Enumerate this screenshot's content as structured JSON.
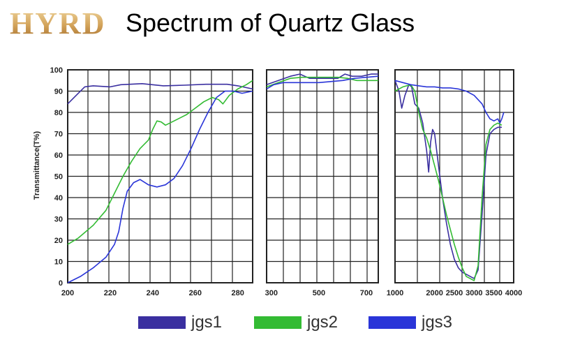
{
  "header": {
    "logo_text": "HYRD",
    "title": "Spectrum of Quartz Glass"
  },
  "chart_data": {
    "type": "line",
    "title": "Spectrum of Quartz Glass",
    "ylabel": "Transmittance(T%)",
    "xlabel": "",
    "ylim": [
      0,
      100
    ],
    "yticks": [
      0,
      10,
      20,
      30,
      40,
      50,
      60,
      70,
      80,
      90,
      100
    ],
    "grid": true,
    "legend_position": "bottom",
    "panels": [
      {
        "xlim": [
          200,
          287
        ],
        "xticks": [
          200,
          220,
          240,
          260,
          280
        ],
        "series": [
          {
            "name": "jgs1",
            "color": "#3a2fa0",
            "points": [
              [
                200,
                84
              ],
              [
                204,
                88
              ],
              [
                208,
                92
              ],
              [
                212,
                92.5
              ],
              [
                220,
                92
              ],
              [
                225,
                93
              ],
              [
                235,
                93.5
              ],
              [
                245,
                92.5
              ],
              [
                255,
                92.8
              ],
              [
                265,
                93.2
              ],
              [
                275,
                93.2
              ],
              [
                280,
                92.5
              ],
              [
                287,
                91
              ]
            ]
          },
          {
            "name": "jgs2",
            "color": "#33bb33",
            "points": [
              [
                200,
                18
              ],
              [
                205,
                21
              ],
              [
                212,
                27
              ],
              [
                218,
                34
              ],
              [
                222,
                42
              ],
              [
                226,
                50
              ],
              [
                230,
                57
              ],
              [
                234,
                63
              ],
              [
                238,
                67
              ],
              [
                240,
                72
              ],
              [
                242,
                76
              ],
              [
                244,
                75.5
              ],
              [
                246,
                74
              ],
              [
                248,
                75
              ],
              [
                252,
                77
              ],
              [
                256,
                79
              ],
              [
                260,
                82
              ],
              [
                264,
                85
              ],
              [
                268,
                87
              ],
              [
                271,
                86
              ],
              [
                273,
                84
              ],
              [
                276,
                88
              ],
              [
                280,
                91
              ],
              [
                284,
                93
              ],
              [
                287,
                95
              ]
            ]
          },
          {
            "name": "jgs3",
            "color": "#2a35d8",
            "points": [
              [
                200,
                0
              ],
              [
                206,
                3
              ],
              [
                212,
                7
              ],
              [
                218,
                12
              ],
              [
                222,
                18
              ],
              [
                224,
                24
              ],
              [
                226,
                35
              ],
              [
                228,
                43
              ],
              [
                231,
                47
              ],
              [
                234,
                48.5
              ],
              [
                238,
                46
              ],
              [
                242,
                45
              ],
              [
                246,
                46
              ],
              [
                250,
                49
              ],
              [
                254,
                55
              ],
              [
                258,
                63
              ],
              [
                262,
                72
              ],
              [
                266,
                80
              ],
              [
                270,
                87
              ],
              [
                274,
                90
              ],
              [
                278,
                90
              ],
              [
                282,
                89
              ],
              [
                287,
                90
              ]
            ]
          }
        ]
      },
      {
        "xlim": [
          280,
          750
        ],
        "xticks": [
          300,
          500,
          700
        ],
        "series": [
          {
            "name": "jgs1",
            "color": "#3a2fa0",
            "points": [
              [
                280,
                93
              ],
              [
                330,
                95
              ],
              [
                380,
                97
              ],
              [
                420,
                98
              ],
              [
                460,
                96
              ],
              [
                500,
                96
              ],
              [
                540,
                96
              ],
              [
                580,
                96
              ],
              [
                610,
                98
              ],
              [
                640,
                97
              ],
              [
                680,
                97
              ],
              [
                720,
                98
              ],
              [
                750,
                98
              ]
            ]
          },
          {
            "name": "jgs2",
            "color": "#33bb33",
            "points": [
              [
                280,
                92
              ],
              [
                330,
                94
              ],
              [
                380,
                96
              ],
              [
                430,
                96.5
              ],
              [
                480,
                96.5
              ],
              [
                530,
                96.5
              ],
              [
                580,
                96.5
              ],
              [
                620,
                96
              ],
              [
                660,
                95
              ],
              [
                700,
                95
              ],
              [
                750,
                95
              ]
            ]
          },
          {
            "name": "jgs3",
            "color": "#2a35d8",
            "points": [
              [
                280,
                91
              ],
              [
                310,
                93
              ],
              [
                350,
                94
              ],
              [
                400,
                94
              ],
              [
                450,
                94
              ],
              [
                500,
                94
              ],
              [
                550,
                94.5
              ],
              [
                600,
                95
              ],
              [
                650,
                96
              ],
              [
                700,
                96.5
              ],
              [
                750,
                97
              ]
            ]
          }
        ]
      },
      {
        "xlim": [
          1000,
          4000
        ],
        "xticks": [
          1000,
          2000,
          2500,
          3000,
          3500,
          4000
        ],
        "series": [
          {
            "name": "jgs1",
            "color": "#3a2fa0",
            "points": [
              [
                1000,
                95
              ],
              [
                1100,
                90
              ],
              [
                1170,
                82
              ],
              [
                1250,
                88
              ],
              [
                1350,
                93
              ],
              [
                1420,
                92
              ],
              [
                1500,
                84
              ],
              [
                1600,
                82
              ],
              [
                1700,
                75
              ],
              [
                1800,
                62
              ],
              [
                1850,
                52
              ],
              [
                1900,
                66
              ],
              [
                1950,
                72
              ],
              [
                2000,
                70
              ],
              [
                2100,
                55
              ],
              [
                2200,
                40
              ],
              [
                2300,
                28
              ],
              [
                2400,
                18
              ],
              [
                2500,
                11
              ],
              [
                2600,
                7
              ],
              [
                2700,
                5
              ],
              [
                2800,
                4
              ],
              [
                2900,
                3
              ],
              [
                3000,
                2
              ],
              [
                3100,
                6
              ],
              [
                3200,
                32
              ],
              [
                3300,
                60
              ],
              [
                3400,
                70
              ],
              [
                3500,
                72
              ],
              [
                3600,
                73
              ],
              [
                3700,
                73
              ]
            ]
          },
          {
            "name": "jgs2",
            "color": "#33bb33",
            "points": [
              [
                1000,
                90
              ],
              [
                1200,
                92
              ],
              [
                1400,
                93
              ],
              [
                1500,
                90
              ],
              [
                1600,
                80
              ],
              [
                1700,
                72
              ],
              [
                1800,
                68
              ],
              [
                1900,
                62
              ],
              [
                2000,
                55
              ],
              [
                2100,
                48
              ],
              [
                2200,
                40
              ],
              [
                2300,
                32
              ],
              [
                2400,
                25
              ],
              [
                2500,
                18
              ],
              [
                2600,
                12
              ],
              [
                2700,
                7
              ],
              [
                2800,
                3
              ],
              [
                2900,
                2
              ],
              [
                3000,
                1
              ],
              [
                3100,
                8
              ],
              [
                3200,
                40
              ],
              [
                3300,
                65
              ],
              [
                3400,
                72
              ],
              [
                3500,
                74
              ],
              [
                3600,
                75
              ],
              [
                3700,
                74
              ]
            ]
          },
          {
            "name": "jgs3",
            "color": "#2a35d8",
            "points": [
              [
                1000,
                95
              ],
              [
                1200,
                94
              ],
              [
                1400,
                93
              ],
              [
                1600,
                92.5
              ],
              [
                1800,
                92
              ],
              [
                2000,
                92
              ],
              [
                2200,
                91.5
              ],
              [
                2400,
                91.5
              ],
              [
                2600,
                91
              ],
              [
                2800,
                90
              ],
              [
                3000,
                88
              ],
              [
                3200,
                84
              ],
              [
                3300,
                80
              ],
              [
                3400,
                77
              ],
              [
                3500,
                76
              ],
              [
                3600,
                77
              ],
              [
                3650,
                75
              ],
              [
                3700,
                77
              ],
              [
                3750,
                80
              ]
            ]
          }
        ]
      }
    ]
  },
  "legend": [
    {
      "label": "jgs1",
      "color": "#3a2fa0"
    },
    {
      "label": "jgs2",
      "color": "#33bb33"
    },
    {
      "label": "jgs3",
      "color": "#2a35d8"
    }
  ]
}
